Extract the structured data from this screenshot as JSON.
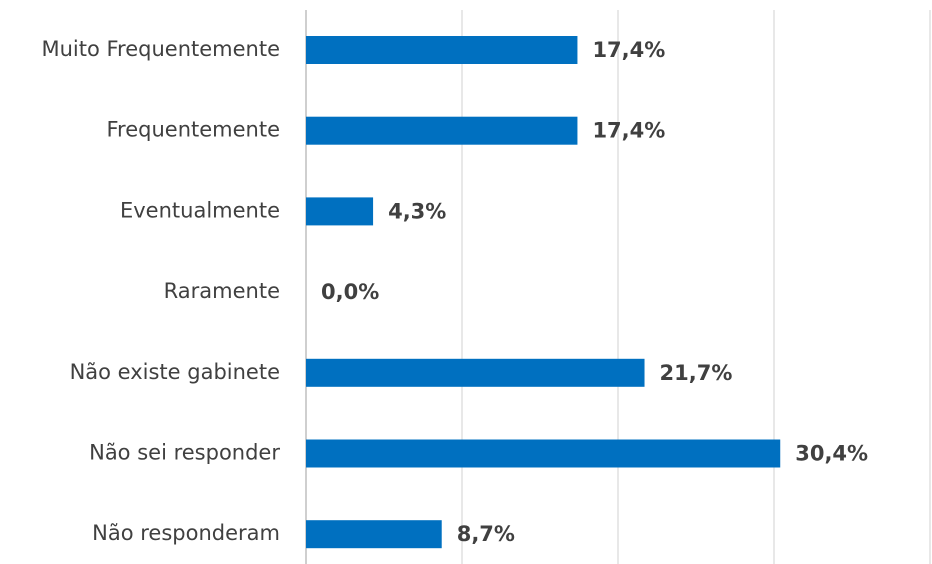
{
  "chart_data": {
    "type": "hbar",
    "categories": [
      "Muito Frequentemente",
      "Frequentemente",
      "Eventualmente",
      "Raramente",
      "Não existe gabinete",
      "Não sei responder",
      "Não responderam"
    ],
    "values": [
      17.4,
      17.4,
      4.3,
      0.0,
      21.7,
      30.4,
      8.7
    ],
    "value_labels": [
      "17,4%",
      "17,4%",
      "4,3%",
      "0,0%",
      "21,7%",
      "30,4%",
      "8,7%"
    ],
    "color": "#0070c0",
    "xlim": [
      0,
      40
    ],
    "xticks": [
      0,
      10,
      20,
      30,
      40
    ],
    "grid": true
  }
}
